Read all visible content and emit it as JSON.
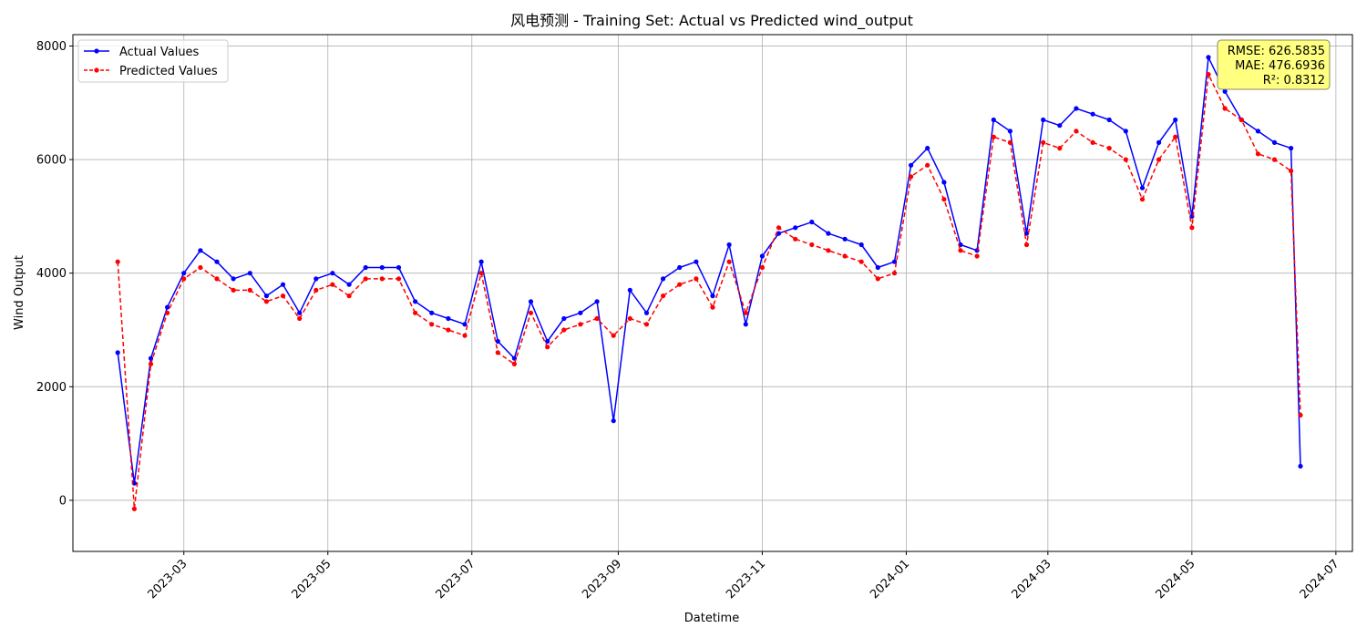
{
  "chart_data": {
    "type": "line",
    "title": "风电预测 - Training Set: Actual vs Predicted wind_output",
    "xlabel": "Datetime",
    "ylabel": "Wind Output",
    "xlim": [
      "2023-01-13",
      "2024-07-08"
    ],
    "ylim": [
      -900,
      8200
    ],
    "grid": true,
    "legend_position": "top-left",
    "x_ticks": [
      "2023-03",
      "2023-05",
      "2023-07",
      "2023-09",
      "2023-11",
      "2024-01",
      "2024-03",
      "2024-05",
      "2024-07"
    ],
    "y_ticks": [
      0,
      2000,
      4000,
      6000,
      8000
    ],
    "series": [
      {
        "name": "Actual Values",
        "color": "#0000ff",
        "line_style": "solid",
        "marker": "circle",
        "x": [
          "2023-02-01",
          "2023-02-08",
          "2023-02-15",
          "2023-02-22",
          "2023-03-01",
          "2023-03-08",
          "2023-03-15",
          "2023-03-22",
          "2023-03-29",
          "2023-04-05",
          "2023-04-12",
          "2023-04-19",
          "2023-04-26",
          "2023-05-03",
          "2023-05-10",
          "2023-05-17",
          "2023-05-24",
          "2023-05-31",
          "2023-06-07",
          "2023-06-14",
          "2023-06-21",
          "2023-06-28",
          "2023-07-05",
          "2023-07-12",
          "2023-07-19",
          "2023-07-26",
          "2023-08-02",
          "2023-08-09",
          "2023-08-16",
          "2023-08-23",
          "2023-08-30",
          "2023-09-06",
          "2023-09-13",
          "2023-09-20",
          "2023-09-27",
          "2023-10-04",
          "2023-10-11",
          "2023-10-18",
          "2023-10-25",
          "2023-11-01",
          "2023-11-08",
          "2023-11-15",
          "2023-11-22",
          "2023-11-29",
          "2023-12-06",
          "2023-12-13",
          "2023-12-20",
          "2023-12-27",
          "2024-01-03",
          "2024-01-10",
          "2024-01-17",
          "2024-01-24",
          "2024-01-31",
          "2024-02-07",
          "2024-02-14",
          "2024-02-21",
          "2024-02-28",
          "2024-03-06",
          "2024-03-13",
          "2024-03-20",
          "2024-03-27",
          "2024-04-03",
          "2024-04-10",
          "2024-04-17",
          "2024-04-24",
          "2024-05-01",
          "2024-05-08",
          "2024-05-15",
          "2024-05-22",
          "2024-05-29",
          "2024-06-05",
          "2024-06-12",
          "2024-06-16"
        ],
        "values": [
          2600,
          300,
          2500,
          3400,
          4000,
          4400,
          4200,
          3900,
          4000,
          3600,
          3800,
          3300,
          3900,
          4000,
          3800,
          4100,
          4100,
          4100,
          3500,
          3300,
          3200,
          3100,
          4200,
          2800,
          2500,
          3500,
          2800,
          3200,
          3300,
          3500,
          1400,
          3700,
          3300,
          3900,
          4100,
          4200,
          3600,
          4500,
          3100,
          4300,
          4700,
          4800,
          4900,
          4700,
          4600,
          4500,
          4100,
          4200,
          5900,
          6200,
          5600,
          4500,
          4400,
          6700,
          6500,
          4700,
          6700,
          6600,
          6900,
          6800,
          6700,
          6500,
          5500,
          6300,
          6700,
          5000,
          7800,
          7200,
          6700,
          6500,
          6300,
          6200,
          600
        ]
      },
      {
        "name": "Predicted Values",
        "color": "#ff0000",
        "line_style": "dashed",
        "marker": "circle",
        "x": [
          "2023-02-01",
          "2023-02-08",
          "2023-02-15",
          "2023-02-22",
          "2023-03-01",
          "2023-03-08",
          "2023-03-15",
          "2023-03-22",
          "2023-03-29",
          "2023-04-05",
          "2023-04-12",
          "2023-04-19",
          "2023-04-26",
          "2023-05-03",
          "2023-05-10",
          "2023-05-17",
          "2023-05-24",
          "2023-05-31",
          "2023-06-07",
          "2023-06-14",
          "2023-06-21",
          "2023-06-28",
          "2023-07-05",
          "2023-07-12",
          "2023-07-19",
          "2023-07-26",
          "2023-08-02",
          "2023-08-09",
          "2023-08-16",
          "2023-08-23",
          "2023-08-30",
          "2023-09-06",
          "2023-09-13",
          "2023-09-20",
          "2023-09-27",
          "2023-10-04",
          "2023-10-11",
          "2023-10-18",
          "2023-10-25",
          "2023-11-01",
          "2023-11-08",
          "2023-11-15",
          "2023-11-22",
          "2023-11-29",
          "2023-12-06",
          "2023-12-13",
          "2023-12-20",
          "2023-12-27",
          "2024-01-03",
          "2024-01-10",
          "2024-01-17",
          "2024-01-24",
          "2024-01-31",
          "2024-02-07",
          "2024-02-14",
          "2024-02-21",
          "2024-02-28",
          "2024-03-06",
          "2024-03-13",
          "2024-03-20",
          "2024-03-27",
          "2024-04-03",
          "2024-04-10",
          "2024-04-17",
          "2024-04-24",
          "2024-05-01",
          "2024-05-08",
          "2024-05-15",
          "2024-05-22",
          "2024-05-29",
          "2024-06-05",
          "2024-06-12",
          "2024-06-16"
        ],
        "values": [
          4200,
          -150,
          2400,
          3300,
          3900,
          4100,
          3900,
          3700,
          3700,
          3500,
          3600,
          3200,
          3700,
          3800,
          3600,
          3900,
          3900,
          3900,
          3300,
          3100,
          3000,
          2900,
          4000,
          2600,
          2400,
          3300,
          2700,
          3000,
          3100,
          3200,
          2900,
          3200,
          3100,
          3600,
          3800,
          3900,
          3400,
          4200,
          3300,
          4100,
          4800,
          4600,
          4500,
          4400,
          4300,
          4200,
          3900,
          4000,
          5700,
          5900,
          5300,
          4400,
          4300,
          6400,
          6300,
          4500,
          6300,
          6200,
          6500,
          6300,
          6200,
          6000,
          5300,
          6000,
          6400,
          4800,
          7500,
          6900,
          6700,
          6100,
          6000,
          5800,
          1500
        ]
      }
    ],
    "annotation": {
      "lines": [
        "RMSE: 626.5835",
        "MAE: 476.6936",
        "R²: 0.8312"
      ],
      "position": "top-right",
      "background": "#ffff80"
    }
  }
}
